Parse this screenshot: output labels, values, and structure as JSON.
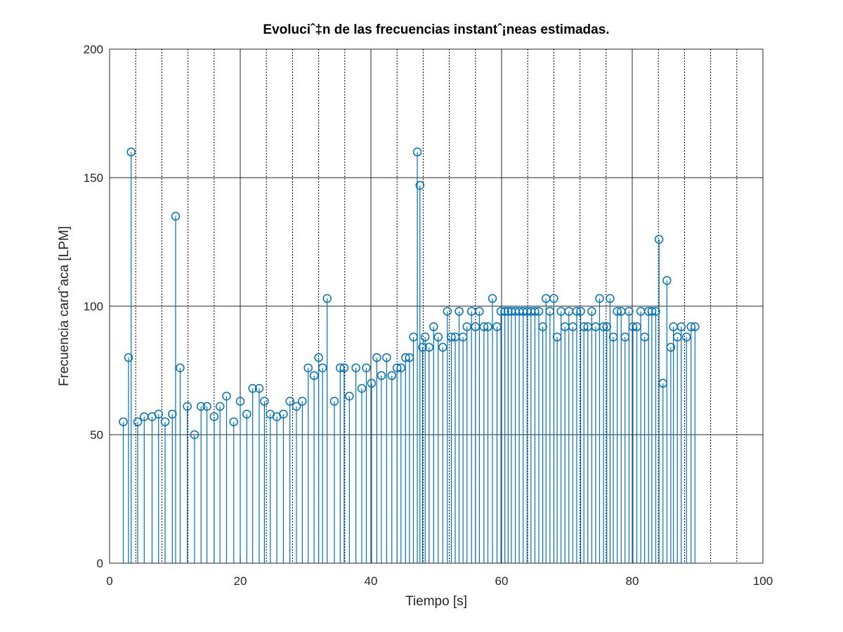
{
  "chart_data": {
    "type": "stem",
    "title": "Evoluciˆ‡n de las frecuencias instantˆ¡neas estimadas.",
    "xlabel": "Tiempo [s]",
    "ylabel": "Frecuencia cardˆaca [LPM]",
    "xlim": [
      0,
      100
    ],
    "ylim": [
      0,
      200
    ],
    "xticks": [
      0,
      20,
      40,
      60,
      80,
      100
    ],
    "xtick_labels": [
      "0",
      "20",
      "40",
      "60",
      "80",
      "100"
    ],
    "yticks": [
      0,
      50,
      100,
      150,
      200
    ],
    "ytick_labels": [
      "0",
      "50",
      "100",
      "150",
      "200"
    ],
    "grid": "on",
    "minor_grid_x": [
      4,
      8,
      12,
      16,
      24,
      28,
      32,
      36,
      44,
      48,
      52,
      56,
      64,
      68,
      72,
      76,
      84,
      88,
      92,
      96
    ],
    "series_color": "#0072BD",
    "x": [
      2.1,
      2.9,
      3.3,
      4.3,
      5.3,
      6.5,
      7.5,
      8.5,
      9.6,
      10.1,
      10.8,
      11.9,
      13.0,
      14.0,
      14.9,
      16.0,
      16.9,
      17.9,
      19.0,
      20.0,
      21.0,
      21.9,
      22.9,
      23.7,
      24.6,
      25.6,
      26.6,
      27.6,
      28.6,
      29.5,
      30.4,
      31.3,
      32.0,
      32.6,
      33.3,
      34.4,
      35.3,
      35.9,
      36.7,
      37.7,
      38.6,
      39.3,
      40.1,
      40.9,
      41.6,
      42.4,
      43.2,
      44.0,
      44.6,
      45.3,
      45.9,
      46.5,
      47.1,
      47.5,
      47.9,
      48.3,
      48.9,
      49.6,
      50.3,
      51.0,
      51.7,
      52.3,
      52.9,
      53.5,
      54.1,
      54.7,
      55.4,
      56.0,
      56.6,
      57.3,
      57.9,
      58.6,
      59.3,
      59.9,
      60.5,
      61.0,
      61.5,
      62.1,
      62.7,
      63.3,
      63.9,
      64.5,
      65.1,
      65.7,
      66.3,
      66.8,
      67.4,
      68.0,
      68.5,
      69.1,
      69.7,
      70.3,
      70.9,
      71.5,
      72.1,
      72.6,
      73.2,
      73.8,
      74.4,
      75.0,
      75.6,
      76.1,
      76.6,
      77.1,
      77.7,
      78.3,
      78.9,
      79.5,
      80.1,
      80.7,
      81.3,
      81.9,
      82.5,
      83.0,
      83.6,
      84.1,
      84.7,
      85.3,
      85.9,
      86.3,
      86.9,
      87.5,
      88.3,
      89.0,
      89.6
    ],
    "values": [
      55,
      80,
      160,
      55,
      57,
      57,
      58,
      55,
      58,
      135,
      76,
      61,
      50,
      61,
      61,
      57,
      61,
      65,
      55,
      63,
      58,
      68,
      68,
      63,
      58,
      57,
      58,
      63,
      61,
      63,
      76,
      73,
      80,
      76,
      103,
      63,
      76,
      76,
      65,
      76,
      68,
      76,
      70,
      80,
      73,
      80,
      73,
      76,
      76,
      80,
      80,
      88,
      160,
      147,
      84,
      88,
      84,
      92,
      88,
      84,
      98,
      88,
      88,
      98,
      88,
      92,
      98,
      92,
      98,
      92,
      92,
      103,
      92,
      98,
      98,
      98,
      98,
      98,
      98,
      98,
      98,
      98,
      98,
      98,
      92,
      103,
      98,
      103,
      88,
      98,
      92,
      98,
      92,
      98,
      98,
      92,
      92,
      98,
      92,
      103,
      92,
      92,
      103,
      88,
      98,
      98,
      88,
      98,
      92,
      92,
      98,
      88,
      98,
      98,
      98,
      126,
      70,
      110,
      84,
      92,
      88,
      92,
      88,
      92,
      92
    ]
  }
}
